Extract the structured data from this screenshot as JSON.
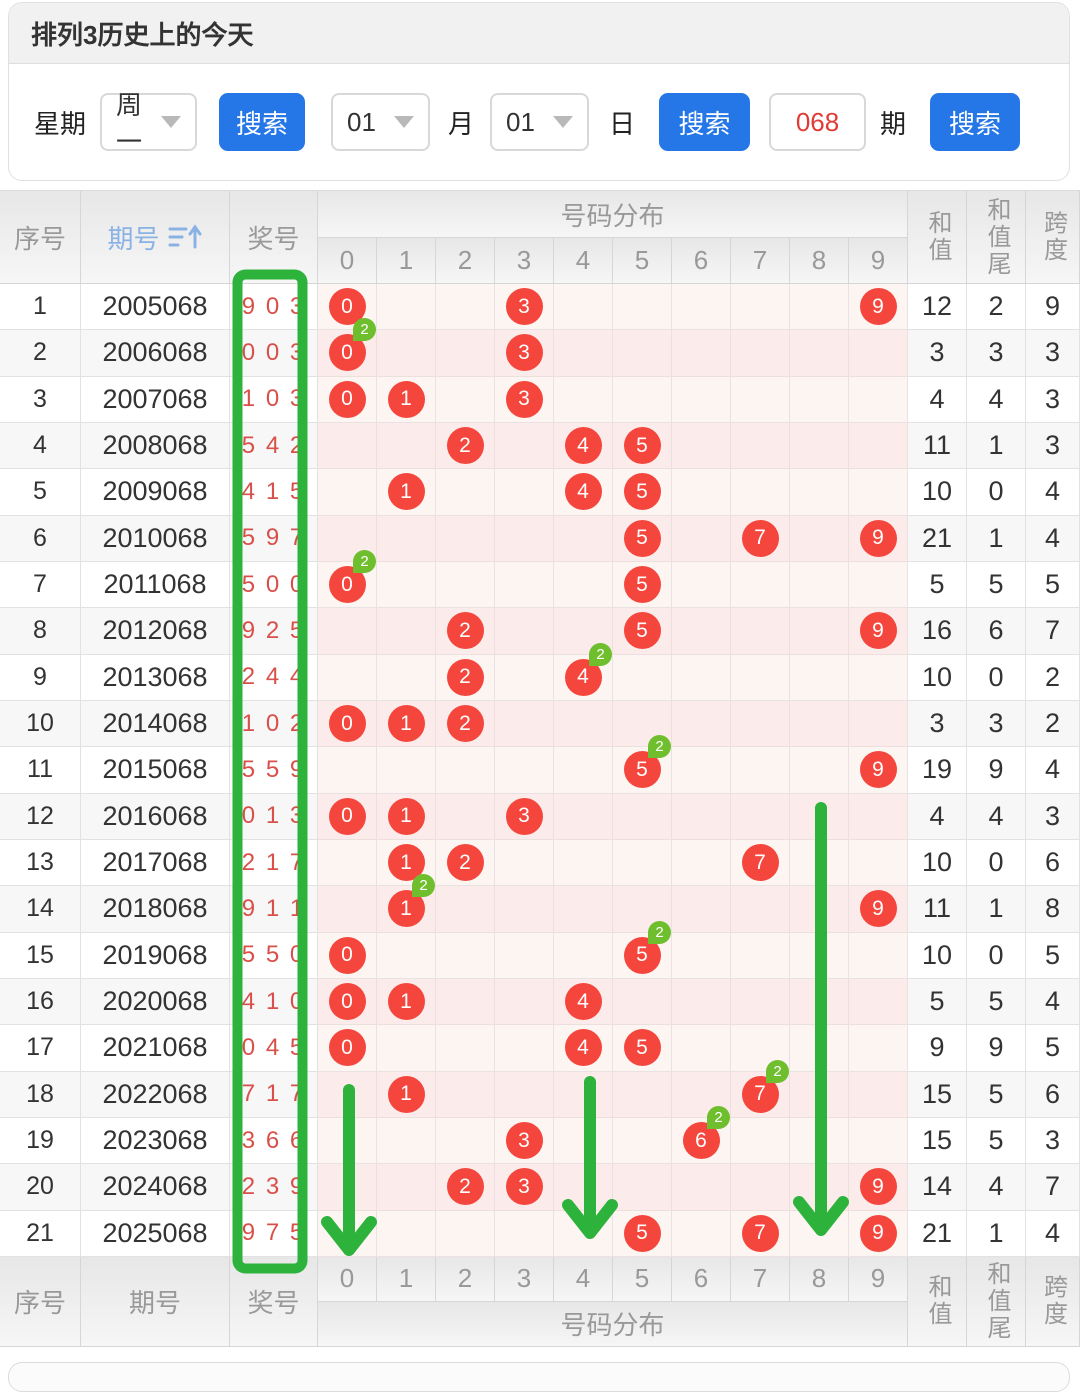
{
  "title": "排列3历史上的今天",
  "toolbar": {
    "week_label": "星期",
    "week_value": "周一",
    "search_label": "搜索",
    "month_value": "01",
    "month_label": "月",
    "day_value": "01",
    "day_label": "日",
    "issue_value": "068",
    "issue_label": "期"
  },
  "table": {
    "headers": {
      "seq": "序号",
      "period": "期号",
      "prize": "奖号",
      "dist": "号码分布",
      "sum": "和值",
      "sum_tail": "和值尾",
      "span": "跨度"
    },
    "digits": [
      "0",
      "1",
      "2",
      "3",
      "4",
      "5",
      "6",
      "7",
      "8",
      "9"
    ],
    "rows": [
      {
        "seq": "1",
        "period": "2005068",
        "prize": "9 0 3",
        "marks": [
          [
            0,
            1
          ],
          [
            3,
            1
          ],
          [
            9,
            1
          ]
        ],
        "sum": "12",
        "tail": "2",
        "span": "9"
      },
      {
        "seq": "2",
        "period": "2006068",
        "prize": "0 0 3",
        "marks": [
          [
            0,
            2
          ],
          [
            3,
            1
          ]
        ],
        "sum": "3",
        "tail": "3",
        "span": "3"
      },
      {
        "seq": "3",
        "period": "2007068",
        "prize": "1 0 3",
        "marks": [
          [
            0,
            1
          ],
          [
            1,
            1
          ],
          [
            3,
            1
          ]
        ],
        "sum": "4",
        "tail": "4",
        "span": "3"
      },
      {
        "seq": "4",
        "period": "2008068",
        "prize": "5 4 2",
        "marks": [
          [
            2,
            1
          ],
          [
            4,
            1
          ],
          [
            5,
            1
          ]
        ],
        "sum": "11",
        "tail": "1",
        "span": "3"
      },
      {
        "seq": "5",
        "period": "2009068",
        "prize": "4 1 5",
        "marks": [
          [
            1,
            1
          ],
          [
            4,
            1
          ],
          [
            5,
            1
          ]
        ],
        "sum": "10",
        "tail": "0",
        "span": "4"
      },
      {
        "seq": "6",
        "period": "2010068",
        "prize": "5 9 7",
        "marks": [
          [
            5,
            1
          ],
          [
            7,
            1
          ],
          [
            9,
            1
          ]
        ],
        "sum": "21",
        "tail": "1",
        "span": "4"
      },
      {
        "seq": "7",
        "period": "2011068",
        "prize": "5 0 0",
        "marks": [
          [
            0,
            2
          ],
          [
            5,
            1
          ]
        ],
        "sum": "5",
        "tail": "5",
        "span": "5"
      },
      {
        "seq": "8",
        "period": "2012068",
        "prize": "9 2 5",
        "marks": [
          [
            2,
            1
          ],
          [
            5,
            1
          ],
          [
            9,
            1
          ]
        ],
        "sum": "16",
        "tail": "6",
        "span": "7"
      },
      {
        "seq": "9",
        "period": "2013068",
        "prize": "2 4 4",
        "marks": [
          [
            2,
            1
          ],
          [
            4,
            2
          ]
        ],
        "sum": "10",
        "tail": "0",
        "span": "2"
      },
      {
        "seq": "10",
        "period": "2014068",
        "prize": "1 0 2",
        "marks": [
          [
            0,
            1
          ],
          [
            1,
            1
          ],
          [
            2,
            1
          ]
        ],
        "sum": "3",
        "tail": "3",
        "span": "2"
      },
      {
        "seq": "11",
        "period": "2015068",
        "prize": "5 5 9",
        "marks": [
          [
            5,
            2
          ],
          [
            9,
            1
          ]
        ],
        "sum": "19",
        "tail": "9",
        "span": "4"
      },
      {
        "seq": "12",
        "period": "2016068",
        "prize": "0 1 3",
        "marks": [
          [
            0,
            1
          ],
          [
            1,
            1
          ],
          [
            3,
            1
          ]
        ],
        "sum": "4",
        "tail": "4",
        "span": "3"
      },
      {
        "seq": "13",
        "period": "2017068",
        "prize": "2 1 7",
        "marks": [
          [
            1,
            1
          ],
          [
            2,
            1
          ],
          [
            7,
            1
          ]
        ],
        "sum": "10",
        "tail": "0",
        "span": "6"
      },
      {
        "seq": "14",
        "period": "2018068",
        "prize": "9 1 1",
        "marks": [
          [
            1,
            2
          ],
          [
            9,
            1
          ]
        ],
        "sum": "11",
        "tail": "1",
        "span": "8"
      },
      {
        "seq": "15",
        "period": "2019068",
        "prize": "5 5 0",
        "marks": [
          [
            0,
            1
          ],
          [
            5,
            2
          ]
        ],
        "sum": "10",
        "tail": "0",
        "span": "5"
      },
      {
        "seq": "16",
        "period": "2020068",
        "prize": "4 1 0",
        "marks": [
          [
            0,
            1
          ],
          [
            1,
            1
          ],
          [
            4,
            1
          ]
        ],
        "sum": "5",
        "tail": "5",
        "span": "4"
      },
      {
        "seq": "17",
        "period": "2021068",
        "prize": "0 4 5",
        "marks": [
          [
            0,
            1
          ],
          [
            4,
            1
          ],
          [
            5,
            1
          ]
        ],
        "sum": "9",
        "tail": "9",
        "span": "5"
      },
      {
        "seq": "18",
        "period": "2022068",
        "prize": "7 1 7",
        "marks": [
          [
            1,
            1
          ],
          [
            7,
            2
          ]
        ],
        "sum": "15",
        "tail": "5",
        "span": "6"
      },
      {
        "seq": "19",
        "period": "2023068",
        "prize": "3 6 6",
        "marks": [
          [
            3,
            1
          ],
          [
            6,
            2
          ]
        ],
        "sum": "15",
        "tail": "5",
        "span": "3"
      },
      {
        "seq": "20",
        "period": "2024068",
        "prize": "2 3 9",
        "marks": [
          [
            2,
            1
          ],
          [
            3,
            1
          ],
          [
            9,
            1
          ]
        ],
        "sum": "14",
        "tail": "4",
        "span": "7"
      },
      {
        "seq": "21",
        "period": "2025068",
        "prize": "9 7 5",
        "marks": [
          [
            5,
            1
          ],
          [
            7,
            1
          ],
          [
            9,
            1
          ]
        ],
        "sum": "21",
        "tail": "1",
        "span": "4"
      }
    ]
  },
  "annotations": {
    "badge_text": "2",
    "highlight_column": "奖号",
    "arrow_columns": [
      "0",
      "4",
      "8"
    ]
  },
  "colors": {
    "circle_red": "#f5463d",
    "badge_green": "#6fbe2e",
    "annotation_green": "#2db33c",
    "button_blue": "#2577e8",
    "period_header_blue": "#8ab2e4"
  }
}
